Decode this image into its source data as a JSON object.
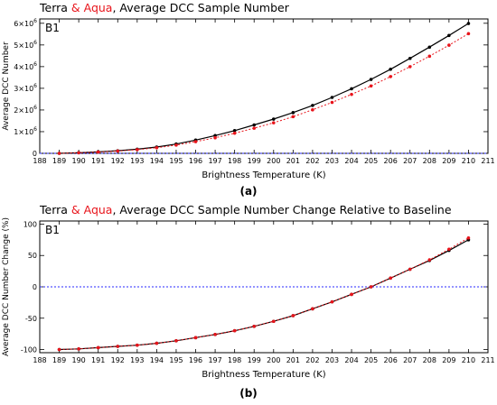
{
  "chart_data": [
    {
      "type": "line",
      "title_prefix": "Terra",
      "title_red": " & Aqua",
      "title_suffix": ", Average DCC Sample Number",
      "panel_label": "B1",
      "xlabel": "Brightness Temperature (K)",
      "ylabel": "Average DCC Number",
      "xlim": [
        188,
        211
      ],
      "ylim": [
        0,
        6200000
      ],
      "xticks": [
        188,
        189,
        190,
        191,
        192,
        193,
        194,
        195,
        196,
        197,
        198,
        199,
        200,
        201,
        202,
        203,
        204,
        205,
        206,
        207,
        208,
        209,
        210,
        211
      ],
      "yticks": [
        {
          "value": 0,
          "base": "0",
          "exp": ""
        },
        {
          "value": 1000000,
          "base": "1×10",
          "exp": "6"
        },
        {
          "value": 2000000,
          "base": "2×10",
          "exp": "6"
        },
        {
          "value": 3000000,
          "base": "3×10",
          "exp": "6"
        },
        {
          "value": 4000000,
          "base": "4×10",
          "exp": "6"
        },
        {
          "value": 5000000,
          "base": "5×10",
          "exp": "6"
        },
        {
          "value": 6000000,
          "base": "6×10",
          "exp": "6"
        }
      ],
      "reference_line": 0,
      "colors": {
        "terra": "#000000",
        "aqua": "#e8141b",
        "reference": "#2a2aff"
      },
      "x": [
        189,
        190,
        191,
        192,
        193,
        194,
        195,
        196,
        197,
        198,
        199,
        200,
        201,
        202,
        203,
        204,
        205,
        206,
        207,
        208,
        209,
        210
      ],
      "series": [
        {
          "key": "terra",
          "line": "solid",
          "values": [
            0,
            30000,
            70000,
            120000,
            190000,
            290000,
            430000,
            610000,
            820000,
            1050000,
            1310000,
            1580000,
            1880000,
            2210000,
            2580000,
            2980000,
            3410000,
            3880000,
            4380000,
            4900000,
            5440000,
            5990000
          ]
        },
        {
          "key": "aqua",
          "line": "dotted",
          "values": [
            0,
            25000,
            60000,
            105000,
            170000,
            260000,
            380000,
            540000,
            720000,
            930000,
            1160000,
            1410000,
            1690000,
            2010000,
            2350000,
            2720000,
            3110000,
            3540000,
            4000000,
            4480000,
            4990000,
            5520000
          ]
        }
      ]
    },
    {
      "type": "line",
      "title_prefix": "Terra",
      "title_red": " & Aqua",
      "title_suffix": ", Average DCC Sample Number Change Relative to Baseline",
      "panel_label": "B1",
      "xlabel": "Brightness Temperature (K)",
      "ylabel": "Average DCC Number Change (%)",
      "xlim": [
        188,
        211
      ],
      "ylim": [
        -105,
        105
      ],
      "xticks": [
        188,
        189,
        190,
        191,
        192,
        193,
        194,
        195,
        196,
        197,
        198,
        199,
        200,
        201,
        202,
        203,
        204,
        205,
        206,
        207,
        208,
        209,
        210,
        211
      ],
      "yticks": [
        {
          "value": -100,
          "base": "-100",
          "exp": ""
        },
        {
          "value": -50,
          "base": "-50",
          "exp": ""
        },
        {
          "value": 0,
          "base": "0",
          "exp": ""
        },
        {
          "value": 50,
          "base": "50",
          "exp": ""
        },
        {
          "value": 100,
          "base": "100",
          "exp": ""
        }
      ],
      "reference_line": 0,
      "colors": {
        "terra": "#000000",
        "aqua": "#e8141b",
        "reference": "#2a2aff"
      },
      "x": [
        189,
        190,
        191,
        192,
        193,
        194,
        195,
        196,
        197,
        198,
        199,
        200,
        201,
        202,
        203,
        204,
        205,
        206,
        207,
        208,
        209,
        210
      ],
      "series": [
        {
          "key": "terra",
          "line": "solid",
          "values": [
            -100,
            -99,
            -97,
            -95,
            -93,
            -90,
            -86,
            -81,
            -76,
            -70,
            -63,
            -55,
            -46,
            -35,
            -24,
            -12,
            0,
            14,
            28,
            42,
            58,
            75
          ]
        },
        {
          "key": "aqua",
          "line": "dotted",
          "values": [
            -100,
            -99,
            -97,
            -95,
            -93,
            -90,
            -86,
            -81,
            -76,
            -70,
            -63,
            -55,
            -46,
            -35,
            -24,
            -12,
            0,
            14,
            28,
            43,
            60,
            78
          ]
        }
      ]
    }
  ],
  "captions": [
    "(a)",
    "(b)"
  ]
}
